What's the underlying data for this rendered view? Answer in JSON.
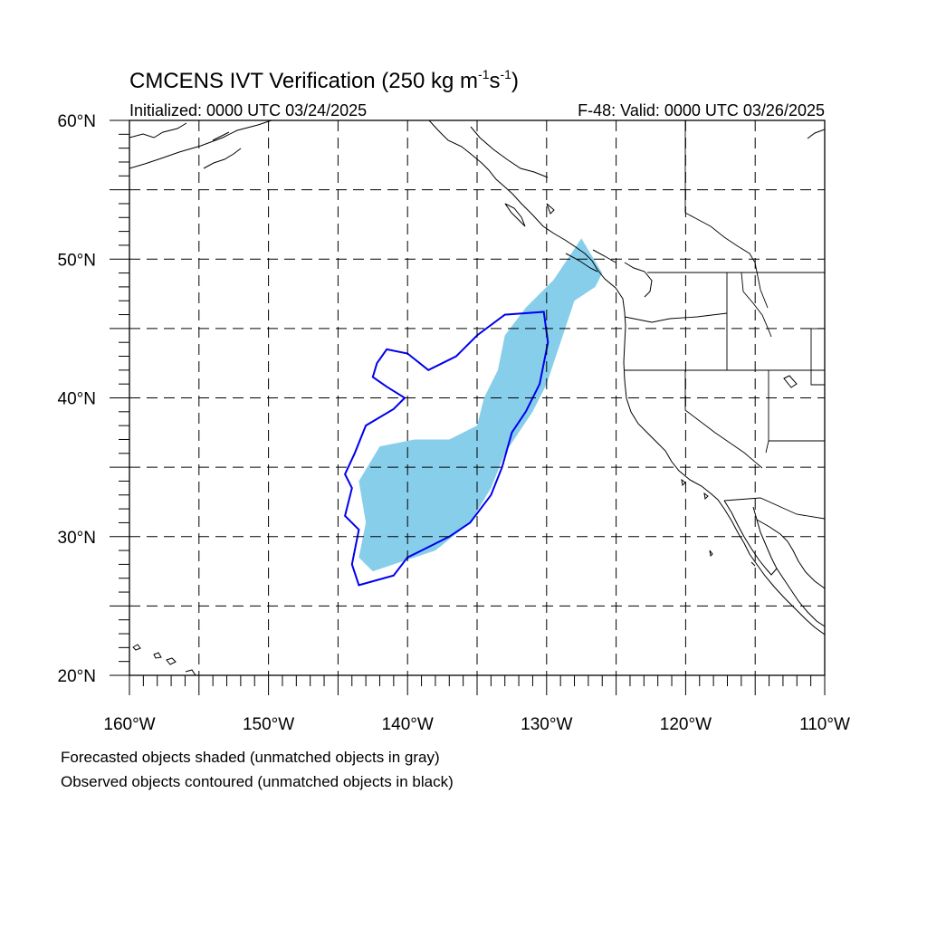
{
  "title": {
    "prefix": "CMCENS IVT Verification (250 kg m",
    "exp1": "-1",
    "mid": "s",
    "exp2": "-1",
    "suffix": ")"
  },
  "init_label": "Initialized: 0000 UTC 03/24/2025",
  "valid_label": "F-48: Valid: 0000 UTC 03/26/2025",
  "lat_ticks": [
    {
      "value": 60,
      "label": "60°N"
    },
    {
      "value": 50,
      "label": "50°N"
    },
    {
      "value": 40,
      "label": "40°N"
    },
    {
      "value": 30,
      "label": "30°N"
    },
    {
      "value": 20,
      "label": "20°N"
    }
  ],
  "lon_ticks": [
    {
      "value": -160,
      "label": "160°W"
    },
    {
      "value": -150,
      "label": "150°W"
    },
    {
      "value": -140,
      "label": "140°W"
    },
    {
      "value": -130,
      "label": "130°W"
    },
    {
      "value": -120,
      "label": "120°W"
    },
    {
      "value": -110,
      "label": "110°W"
    }
  ],
  "notes": [
    "Forecasted objects shaded (unmatched objects in gray)",
    "Observed objects contoured (unmatched objects in black)"
  ],
  "colors": {
    "forecast_fill": "#87ceeb",
    "observed_contour": "#0000ee",
    "coastline": "#000000",
    "grid": "#000000"
  },
  "chart_data": {
    "type": "map",
    "projection": "cylindrical-equidistant",
    "lon_range": [
      -160,
      -110
    ],
    "lat_range": [
      20,
      60
    ],
    "grid": "dashed, every 5 degrees",
    "forecast_object": {
      "matched": true,
      "color": "skyblue",
      "outline": [
        [
          -127.5,
          51.5
        ],
        [
          -126,
          49
        ],
        [
          -126.5,
          48
        ],
        [
          -128,
          47
        ],
        [
          -129,
          44
        ],
        [
          -130,
          41
        ],
        [
          -131,
          39
        ],
        [
          -133,
          36
        ],
        [
          -134,
          33.5
        ],
        [
          -135.5,
          31
        ],
        [
          -138,
          29
        ],
        [
          -141,
          28
        ],
        [
          -142.5,
          27.5
        ],
        [
          -143.5,
          28.5
        ],
        [
          -143,
          31
        ],
        [
          -143.5,
          34
        ],
        [
          -142,
          36.5
        ],
        [
          -139.5,
          37
        ],
        [
          -137,
          37
        ],
        [
          -135,
          38
        ],
        [
          -134.5,
          40
        ],
        [
          -133.5,
          42
        ],
        [
          -133,
          44.5
        ],
        [
          -131.5,
          46.5
        ],
        [
          -129.5,
          48.5
        ]
      ]
    },
    "observed_object": {
      "matched": true,
      "color": "blue",
      "outline": [
        [
          -130.2,
          46.2
        ],
        [
          -129.9,
          44
        ],
        [
          -130.5,
          41
        ],
        [
          -131.5,
          39
        ],
        [
          -132.5,
          37.5
        ],
        [
          -133.2,
          35
        ],
        [
          -134,
          33
        ],
        [
          -135.5,
          31
        ],
        [
          -137,
          30
        ],
        [
          -139,
          29
        ],
        [
          -140,
          28.5
        ],
        [
          -141,
          27.2
        ],
        [
          -143.5,
          26.5
        ],
        [
          -144,
          28
        ],
        [
          -143.5,
          30.5
        ],
        [
          -144.5,
          31.5
        ],
        [
          -144,
          33.5
        ],
        [
          -144.5,
          34.5
        ],
        [
          -143.8,
          36
        ],
        [
          -143,
          38
        ],
        [
          -141,
          39.2
        ],
        [
          -140.2,
          40
        ],
        [
          -141.5,
          40.8
        ],
        [
          -142.5,
          41.5
        ],
        [
          -142.2,
          42.5
        ],
        [
          -141.5,
          43.5
        ],
        [
          -140,
          43.2
        ],
        [
          -138.5,
          42
        ],
        [
          -136.5,
          43
        ],
        [
          -135,
          44.5
        ],
        [
          -133,
          46
        ]
      ]
    }
  }
}
